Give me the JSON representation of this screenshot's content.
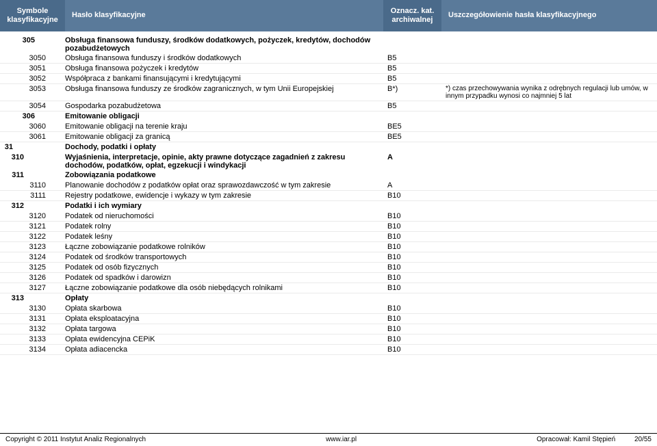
{
  "header": {
    "col1": "Symbole klasyfikacyjne",
    "col2": "Hasło klasyfikacyjne",
    "col3": "Oznacz. kat. archiwalnej",
    "col4": "Uszczegółowienie hasła klasyfikacyjnego"
  },
  "rows": [
    {
      "indent": 2,
      "code": "305",
      "text": "Obsługa finansowa funduszy, środków dodatkowych, pożyczek, kredytów, dochodów pozabudżetowych",
      "kat": "",
      "detail": "",
      "bold": true,
      "noborder": true
    },
    {
      "indent": 3,
      "code": "3050",
      "text": "Obsługa finansowa funduszy i środków dodatkowych",
      "kat": "B5",
      "detail": ""
    },
    {
      "indent": 3,
      "code": "3051",
      "text": "Obsługa finansowa pożyczek i kredytów",
      "kat": "B5",
      "detail": ""
    },
    {
      "indent": 3,
      "code": "3052",
      "text": "Współpraca z bankami finansującymi i kredytującymi",
      "kat": "B5",
      "detail": ""
    },
    {
      "indent": 3,
      "code": "3053",
      "text": "Obsługa finansowa funduszy ze środków zagranicznych, w tym Unii Europejskiej",
      "kat": "B*)",
      "detail": "*) czas przechowywania wynika z odrębnych regulacji lub umów, w innym przypadku wynosi co najmniej 5 lat"
    },
    {
      "indent": 3,
      "code": "3054",
      "text": "Gospodarka pozabudżetowa",
      "kat": "B5",
      "detail": ""
    },
    {
      "indent": 2,
      "code": "306",
      "text": "Emitowanie obligacji",
      "kat": "",
      "detail": "",
      "bold": true,
      "noborder": true
    },
    {
      "indent": 3,
      "code": "3060",
      "text": "Emitowanie obligacji na terenie kraju",
      "kat": "BE5",
      "detail": ""
    },
    {
      "indent": 3,
      "code": "3061",
      "text": "Emitowanie obligacji za granicą",
      "kat": "BE5",
      "detail": ""
    },
    {
      "indent": 0,
      "code": "31",
      "text": "Dochody, podatki i opłaty",
      "kat": "",
      "detail": "",
      "bold": true,
      "noborder": true
    },
    {
      "indent": 1,
      "code": "310",
      "text": "Wyjaśnienia, interpretacje, opinie, akty prawne dotyczące zagadnień z zakresu dochodów, podatków, opłat, egzekucji i windykacji",
      "kat": "A",
      "detail": "",
      "bold": true,
      "noborder": true
    },
    {
      "indent": 1,
      "code": "311",
      "text": "Zobowiązania podatkowe",
      "kat": "",
      "detail": "",
      "bold": true,
      "noborder": true
    },
    {
      "indent": 3,
      "code": "3110",
      "text": "Planowanie dochodów z podatków opłat oraz sprawozdawczość w tym zakresie",
      "kat": "A",
      "detail": ""
    },
    {
      "indent": 3,
      "code": "3111",
      "text": "Rejestry podatkowe, ewidencje i wykazy w tym zakresie",
      "kat": "B10",
      "detail": ""
    },
    {
      "indent": 1,
      "code": "312",
      "text": "Podatki i ich wymiary",
      "kat": "",
      "detail": "",
      "bold": true,
      "noborder": true
    },
    {
      "indent": 3,
      "code": "3120",
      "text": "Podatek od nieruchomości",
      "kat": "B10",
      "detail": ""
    },
    {
      "indent": 3,
      "code": "3121",
      "text": "Podatek rolny",
      "kat": "B10",
      "detail": ""
    },
    {
      "indent": 3,
      "code": "3122",
      "text": "Podatek leśny",
      "kat": "B10",
      "detail": ""
    },
    {
      "indent": 3,
      "code": "3123",
      "text": "Łączne zobowiązanie podatkowe rolników",
      "kat": "B10",
      "detail": ""
    },
    {
      "indent": 3,
      "code": "3124",
      "text": "Podatek od środków transportowych",
      "kat": "B10",
      "detail": ""
    },
    {
      "indent": 3,
      "code": "3125",
      "text": "Podatek od osób fizycznych",
      "kat": "B10",
      "detail": ""
    },
    {
      "indent": 3,
      "code": "3126",
      "text": "Podatek od spadków i darowizn",
      "kat": "B10",
      "detail": ""
    },
    {
      "indent": 3,
      "code": "3127",
      "text": "Łączne zobowiązanie podatkowe dla osób niebędących rolnikami",
      "kat": "B10",
      "detail": ""
    },
    {
      "indent": 1,
      "code": "313",
      "text": "Opłaty",
      "kat": "",
      "detail": "",
      "bold": true,
      "noborder": true
    },
    {
      "indent": 3,
      "code": "3130",
      "text": "Opłata skarbowa",
      "kat": "B10",
      "detail": ""
    },
    {
      "indent": 3,
      "code": "3131",
      "text": "Opłata eksploatacyjna",
      "kat": "B10",
      "detail": ""
    },
    {
      "indent": 3,
      "code": "3132",
      "text": "Opłata targowa",
      "kat": "B10",
      "detail": ""
    },
    {
      "indent": 3,
      "code": "3133",
      "text": "Opłata ewidencyjna CEPiK",
      "kat": "B10",
      "detail": ""
    },
    {
      "indent": 3,
      "code": "3134",
      "text": "Opłata adiacencka",
      "kat": "B10",
      "detail": ""
    }
  ],
  "footer": {
    "left": "Copyright © 2011 Instytut Analiz Regionalnych",
    "center": "www.iar.pl",
    "right": "Opracował: Kamil Stępień",
    "page": "20/55"
  }
}
